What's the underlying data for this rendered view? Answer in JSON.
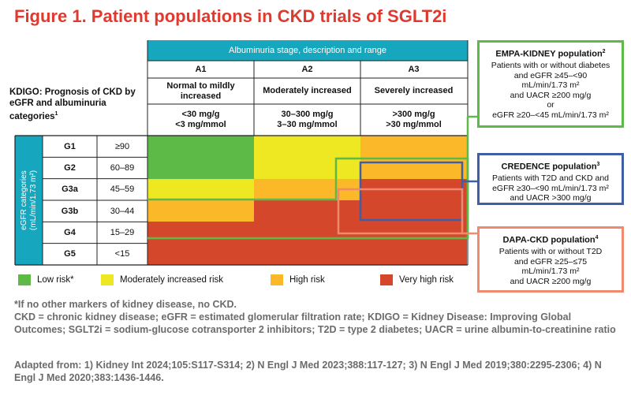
{
  "title": "Figure 1. Patient populations in CKD trials of SGLT2i",
  "kdigo_label": "KDIGO: Prognosis of CKD by eGFR and albuminuria categories",
  "kdigo_sup": "1",
  "albuminuria_header": "Albuminuria stage, description and range",
  "columns": [
    {
      "code": "A1",
      "desc": "Normal to mildly increased",
      "range1": "<30 mg/g",
      "range2": "<3 mg/mmol"
    },
    {
      "code": "A2",
      "desc": "Moderately increased",
      "range1": "30–300 mg/g",
      "range2": "3–30 mg/mmol"
    },
    {
      "code": "A3",
      "desc": "Severely increased",
      "range1": ">300 mg/g",
      "range2": ">30 mg/mmol"
    }
  ],
  "egfr_label_line1": "eGFR categories",
  "egfr_label_line2": "(mL/min/1.73 m²)",
  "rows": [
    {
      "code": "G1",
      "range": "≥90",
      "risk": [
        "low",
        "moderate",
        "high"
      ]
    },
    {
      "code": "G2",
      "range": "60–89",
      "risk": [
        "low",
        "moderate",
        "high"
      ]
    },
    {
      "code": "G3a",
      "range": "45–59",
      "risk": [
        "moderate",
        "high",
        "very_high"
      ]
    },
    {
      "code": "G3b",
      "range": "30–44",
      "risk": [
        "high",
        "very_high",
        "very_high"
      ]
    },
    {
      "code": "G4",
      "range": "15–29",
      "risk": [
        "very_high",
        "very_high",
        "very_high"
      ]
    },
    {
      "code": "G5",
      "range": "<15",
      "risk": [
        "very_high",
        "very_high",
        "very_high"
      ]
    }
  ],
  "risk_colors": {
    "low": "#5dba47",
    "moderate": "#ede822",
    "high": "#fbb829",
    "very_high": "#d5472a"
  },
  "legend": [
    {
      "key": "low",
      "label": "Low risk*"
    },
    {
      "key": "moderate",
      "label": "Moderately increased risk"
    },
    {
      "key": "high",
      "label": "High risk"
    },
    {
      "key": "very_high",
      "label": "Very high risk"
    }
  ],
  "empa": {
    "title": "EMPA-KIDNEY population",
    "sup": "2",
    "lines": [
      "Patients with or without diabetes",
      "and eGFR ≥45–<90",
      "mL/min/1.73 m²",
      "and UACR ≥200 mg/g",
      "or",
      "eGFR ≥20–<45 mL/min/1.73 m²"
    ],
    "color": "#5dba47"
  },
  "credence": {
    "title": "CREDENCE population",
    "sup": "3",
    "lines": [
      "Patients with T2D and CKD and",
      "eGFR ≥30–<90 mL/min/1.73 m²",
      "and UACR >300 mg/g"
    ],
    "color": "#3f5ea8"
  },
  "dapa": {
    "title": "DAPA-CKD population",
    "sup": "4",
    "lines": [
      "Patients with or without T2D",
      "and eGFR ≥25–≤75",
      "mL/min/1.73 m²",
      "and UACR ≥200 mg/g"
    ],
    "color": "#ef8a6e"
  },
  "footnotes": [
    "*If no other markers of kidney disease, no CKD.",
    "CKD = chronic kidney disease; eGFR = estimated glomerular filtration rate; KDIGO = Kidney Disease: Improving Global Outcomes; SGLT2i = sodium-glucose cotransporter 2 inhibitors; T2D = type 2 diabetes; UACR = urine albumin-to-creatinine ratio",
    "Adapted from: 1) Kidney Int 2024;105:S117-S314; 2) N Engl J Med 2023;388:117-127; 3) N Engl J Med 2019;380:2295-2306; 4) N Engl J Med 2020;383:1436-1446."
  ]
}
